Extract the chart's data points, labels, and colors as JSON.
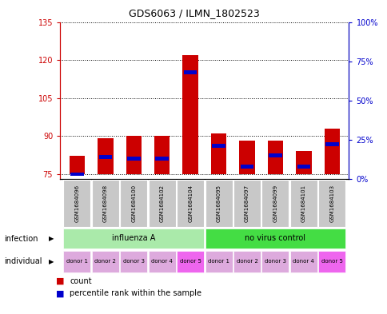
{
  "title": "GDS6063 / ILMN_1802523",
  "samples": [
    "GSM1684096",
    "GSM1684098",
    "GSM1684100",
    "GSM1684102",
    "GSM1684104",
    "GSM1684095",
    "GSM1684097",
    "GSM1684099",
    "GSM1684101",
    "GSM1684103"
  ],
  "count_values": [
    82,
    89,
    90,
    90,
    122,
    91,
    88,
    88,
    84,
    93
  ],
  "percentile_values": [
    3,
    14,
    13,
    13,
    68,
    21,
    8,
    15,
    8,
    22
  ],
  "baseline": 75,
  "ylim_left": [
    73,
    135
  ],
  "yticks_left": [
    75,
    90,
    105,
    120,
    135
  ],
  "ylim_right": [
    0,
    100
  ],
  "yticks_right": [
    0,
    25,
    50,
    75,
    100
  ],
  "ytick_labels_right": [
    "0%",
    "25%",
    "50%",
    "75%",
    "100%"
  ],
  "bar_color_red": "#cc0000",
  "bar_color_blue": "#0000cc",
  "infection_groups": [
    {
      "label": "influenza A",
      "start": 0,
      "end": 5,
      "color": "#aaeaaa"
    },
    {
      "label": "no virus control",
      "start": 5,
      "end": 10,
      "color": "#44dd44"
    }
  ],
  "individual_labels": [
    "donor 1",
    "donor 2",
    "donor 3",
    "donor 4",
    "donor 5",
    "donor 1",
    "donor 2",
    "donor 3",
    "donor 4",
    "donor 5"
  ],
  "individual_colors": [
    "#ddaadd",
    "#ddaadd",
    "#ddaadd",
    "#ddaadd",
    "#ee66ee",
    "#ddaadd",
    "#ddaadd",
    "#ddaadd",
    "#ddaadd",
    "#ee66ee"
  ],
  "sample_bg_color": "#c8c8c8",
  "left_axis_color": "#cc0000",
  "right_axis_color": "#0000cc",
  "grid_color": "#000000",
  "annotation_infection": "infection",
  "annotation_individual": "individual",
  "legend_count": "count",
  "legend_percentile": "percentile rank within the sample"
}
